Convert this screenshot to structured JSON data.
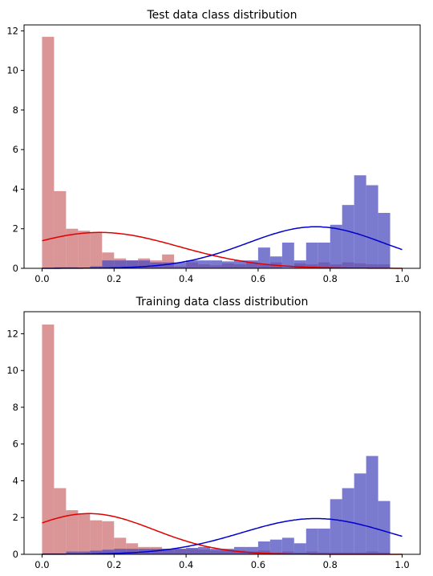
{
  "chart_data": [
    {
      "type": "histogram",
      "title": "Test data class distribution",
      "xlabel": "",
      "ylabel": "",
      "xlim": [
        -0.05,
        1.05
      ],
      "ylim": [
        0,
        12.3
      ],
      "xticks": [
        "0.0",
        "0.2",
        "0.4",
        "0.6",
        "0.8",
        "1.0"
      ],
      "yticks": [
        "0",
        "2",
        "4",
        "6",
        "8",
        "10",
        "12"
      ],
      "bin_width": 0.0333,
      "bins_start": [
        0.0,
        0.0333,
        0.0667,
        0.1,
        0.1333,
        0.1667,
        0.2,
        0.2333,
        0.2667,
        0.3,
        0.3333,
        0.3667,
        0.4,
        0.4333,
        0.4667,
        0.5,
        0.5333,
        0.5667,
        0.6,
        0.6333,
        0.6667,
        0.7,
        0.7333,
        0.7667,
        0.8,
        0.8333,
        0.8667,
        0.9,
        0.9333
      ],
      "series": [
        {
          "color": "#cd7173",
          "values": [
            11.7,
            3.9,
            2.0,
            1.9,
            1.8,
            0.8,
            0.5,
            0.4,
            0.5,
            0.4,
            0.7,
            0.1,
            0.3,
            0.2,
            0.15,
            0.25,
            0.2,
            0.3,
            0.2,
            0.3,
            0.0,
            0.25,
            0.2,
            0.3,
            0.2,
            0.3,
            0.25,
            0.2,
            0.2
          ],
          "fit": {
            "mu": 0.16,
            "sigma": 0.22,
            "color": "#e00000"
          }
        },
        {
          "color": "#4d4dbf",
          "values": [
            0.0,
            0.05,
            0.05,
            0.0,
            0.1,
            0.4,
            0.4,
            0.4,
            0.4,
            0.3,
            0.3,
            0.3,
            0.4,
            0.4,
            0.4,
            0.35,
            0.4,
            0.4,
            1.05,
            0.6,
            1.3,
            0.4,
            1.3,
            1.3,
            2.2,
            3.2,
            4.7,
            4.2,
            2.8
          ],
          "fit": {
            "mu": 0.76,
            "sigma": 0.19,
            "color": "#0000cc"
          }
        }
      ]
    },
    {
      "type": "histogram",
      "title": "Training data class distribution",
      "xlabel": "",
      "ylabel": "",
      "xlim": [
        -0.05,
        1.05
      ],
      "ylim": [
        0,
        13.2
      ],
      "xticks": [
        "0.0",
        "0.2",
        "0.4",
        "0.6",
        "0.8",
        "1.0"
      ],
      "yticks": [
        "0",
        "2",
        "4",
        "6",
        "8",
        "10",
        "12"
      ],
      "bin_width": 0.0333,
      "bins_start": [
        0.0,
        0.0333,
        0.0667,
        0.1,
        0.1333,
        0.1667,
        0.2,
        0.2333,
        0.2667,
        0.3,
        0.3333,
        0.3667,
        0.4,
        0.4333,
        0.4667,
        0.5,
        0.5333,
        0.5667,
        0.6,
        0.6333,
        0.6667,
        0.7,
        0.7333,
        0.7667,
        0.8,
        0.8333,
        0.8667,
        0.9,
        0.9333
      ],
      "series": [
        {
          "color": "#cd7173",
          "values": [
            12.5,
            3.6,
            2.4,
            2.2,
            1.85,
            1.8,
            0.9,
            0.6,
            0.4,
            0.4,
            0.3,
            0.3,
            0.3,
            0.25,
            0.2,
            0.2,
            0.2,
            0.15,
            0.2,
            0.1,
            0.15,
            0.1,
            0.15,
            0.1,
            0.1,
            0.1,
            0.1,
            0.15,
            0.1
          ],
          "fit": {
            "mu": 0.13,
            "sigma": 0.18,
            "color": "#e00000"
          }
        },
        {
          "color": "#4d4dbf",
          "values": [
            0.05,
            0.05,
            0.15,
            0.15,
            0.2,
            0.25,
            0.3,
            0.3,
            0.3,
            0.3,
            0.3,
            0.3,
            0.35,
            0.4,
            0.3,
            0.3,
            0.4,
            0.4,
            0.7,
            0.8,
            0.9,
            0.6,
            1.4,
            1.4,
            3.0,
            3.6,
            4.4,
            5.35,
            2.9
          ],
          "fit": {
            "mu": 0.76,
            "sigma": 0.205,
            "color": "#0000cc"
          }
        }
      ]
    }
  ]
}
